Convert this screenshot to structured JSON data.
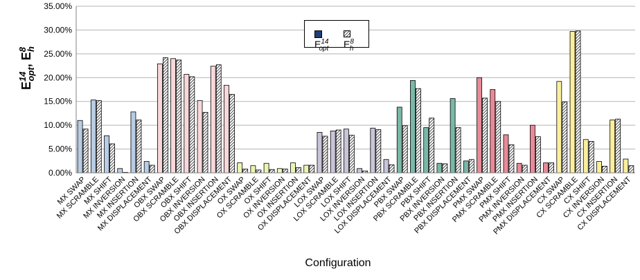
{
  "chart_data": {
    "type": "bar",
    "title": "",
    "xlabel": "Configuration",
    "ylabel_main": "E",
    "ylabel_sup1": "14",
    "ylabel_sub1": "opt",
    "ylabel_sep": ",",
    "ylabel_main2": "E",
    "ylabel_sup2": "8",
    "ylabel_sub2": "h",
    "ylim": [
      0,
      0.35
    ],
    "yticks": [
      "0.00%",
      "5.00%",
      "10.00%",
      "15.00%",
      "20.00%",
      "25.00%",
      "30.00%",
      "35.00%"
    ],
    "grid": true,
    "legend_position": "top-center",
    "categories": [
      "MX SWAP",
      "MX SCRAMBLE",
      "MX SHIFT",
      "MX INVERSION",
      "MX INSERTION",
      "MX DISPLACEMENT",
      "OBX SWAP",
      "OBX SCRAMBLE",
      "OBX SHIFT",
      "OBX INVERSION",
      "OBX INSERTION",
      "OBX DISPLACEMENT",
      "OX SWAP",
      "OX SCRAMBLE",
      "OX SHIFT",
      "OX INVERSION",
      "OX INSERTION",
      "OX DISPLACEMENT",
      "LOX SWAP",
      "LOX SCRAMBLE",
      "LOX SHIFT",
      "LOX INVERSION",
      "LOX INSERTION",
      "LOX DISPLACEMENT",
      "PBX SWAP",
      "PBX SCRAMBLE",
      "PBX SHIFT",
      "PBX INVERSION",
      "PBX INSERTION",
      "PBX DISPLACEMENT",
      "PMX SWAP",
      "PMX SCRAMBLE",
      "PMX SHIFT",
      "PMX INVERSION",
      "PMX INSERTION",
      "PMX DISPLACEMENT",
      "CX SWAP",
      "CX SCRAMBLE",
      "CX SHIFT",
      "CX INVERSION",
      "CX INSERTION",
      "CX DISPLACEMENT"
    ],
    "group_colors": [
      "#b8cce4",
      "#f8d7da",
      "#eef5b4",
      "#c9c4d8",
      "#7ab8a7",
      "#e88a98",
      "#fcef9c"
    ],
    "series": [
      {
        "name": "E opt 14",
        "legend_main": "E",
        "legend_sup": "14",
        "legend_sub": "opt",
        "style": "solid",
        "values": [
          0.11,
          0.153,
          0.078,
          0.009,
          0.128,
          0.024,
          0.229,
          0.24,
          0.207,
          0.152,
          0.224,
          0.184,
          0.021,
          0.015,
          0.02,
          0.009,
          0.021,
          0.016,
          0.085,
          0.088,
          0.092,
          0.009,
          0.094,
          0.028,
          0.138,
          0.194,
          0.095,
          0.02,
          0.156,
          0.025,
          0.2,
          0.175,
          0.08,
          0.02,
          0.1,
          0.021,
          0.192,
          0.297,
          0.07,
          0.024,
          0.111,
          0.029
        ]
      },
      {
        "name": "E h 8",
        "legend_main": "E",
        "legend_sup": "8",
        "legend_sub": "h",
        "style": "hatched",
        "values": [
          0.092,
          0.152,
          0.061,
          0.001,
          0.111,
          0.016,
          0.242,
          0.237,
          0.202,
          0.127,
          0.227,
          0.165,
          0.008,
          0.006,
          0.007,
          0.008,
          0.011,
          0.016,
          0.077,
          0.09,
          0.079,
          0.004,
          0.091,
          0.017,
          0.099,
          0.177,
          0.115,
          0.019,
          0.095,
          0.028,
          0.157,
          0.15,
          0.059,
          0.016,
          0.076,
          0.021,
          0.149,
          0.298,
          0.066,
          0.014,
          0.113,
          0.015
        ]
      }
    ]
  }
}
